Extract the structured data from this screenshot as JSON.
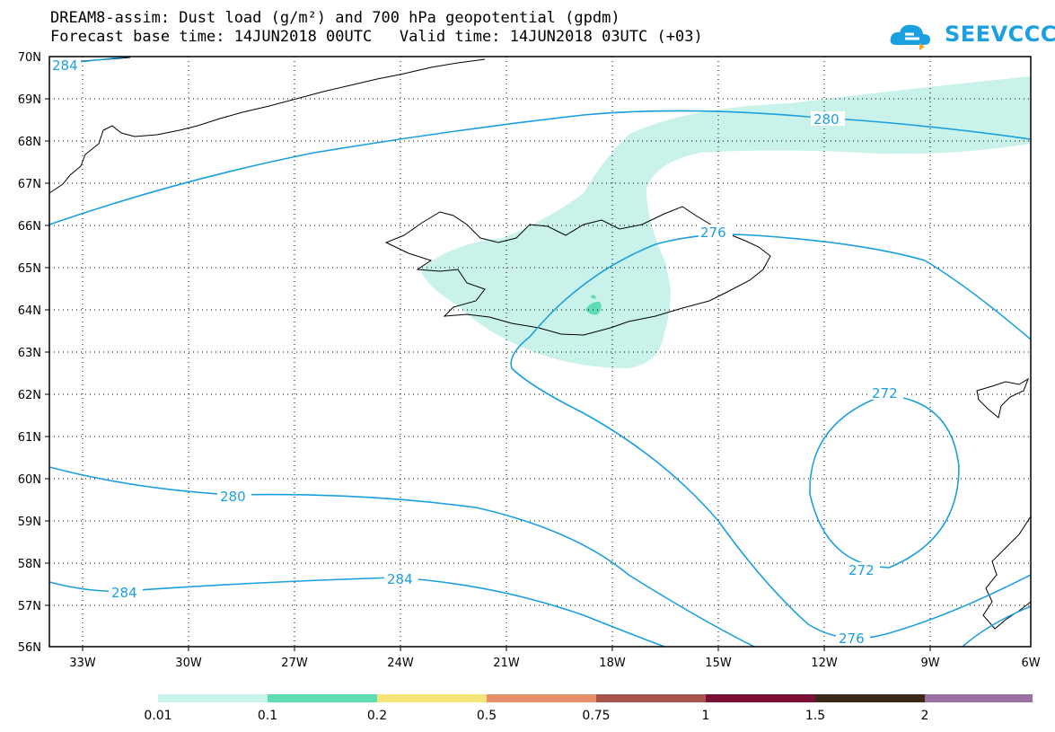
{
  "header": {
    "title_line1": "DREAM8-assim: Dust load (g/m²) and 700 hPa geopotential (gpdm)",
    "title_line2": "Forecast base time: 14JUN2018 00UTC   Valid time: 14JUN2018 03UTC (+03)"
  },
  "logo": {
    "text": "SEEVCCC",
    "icon": "cloud-logo-icon",
    "color": "#1a9fe0"
  },
  "map": {
    "lat_labels": [
      "70N",
      "69N",
      "68N",
      "67N",
      "66N",
      "65N",
      "64N",
      "63N",
      "62N",
      "61N",
      "60N",
      "59N",
      "58N",
      "57N",
      "56N"
    ],
    "lon_labels": [
      "33W",
      "30W",
      "27W",
      "24W",
      "21W",
      "18W",
      "15W",
      "12W",
      "9W",
      "6W"
    ],
    "contour_color": "#1a9fe0",
    "dust_color": "#c8f2ea",
    "contour_labels": [
      "284",
      "280",
      "276",
      "280",
      "272",
      "272",
      "284",
      "284",
      "276"
    ]
  },
  "legend": {
    "colors": [
      "#c8f2ea",
      "#5fdcb4",
      "#f5e47a",
      "#e8906c",
      "#a8564c",
      "#7a1034",
      "#3a2818",
      "#9a70a0"
    ],
    "labels": [
      "0.01",
      "0.1",
      "0.2",
      "0.5",
      "0.75",
      "1",
      "1.5",
      "2"
    ]
  }
}
